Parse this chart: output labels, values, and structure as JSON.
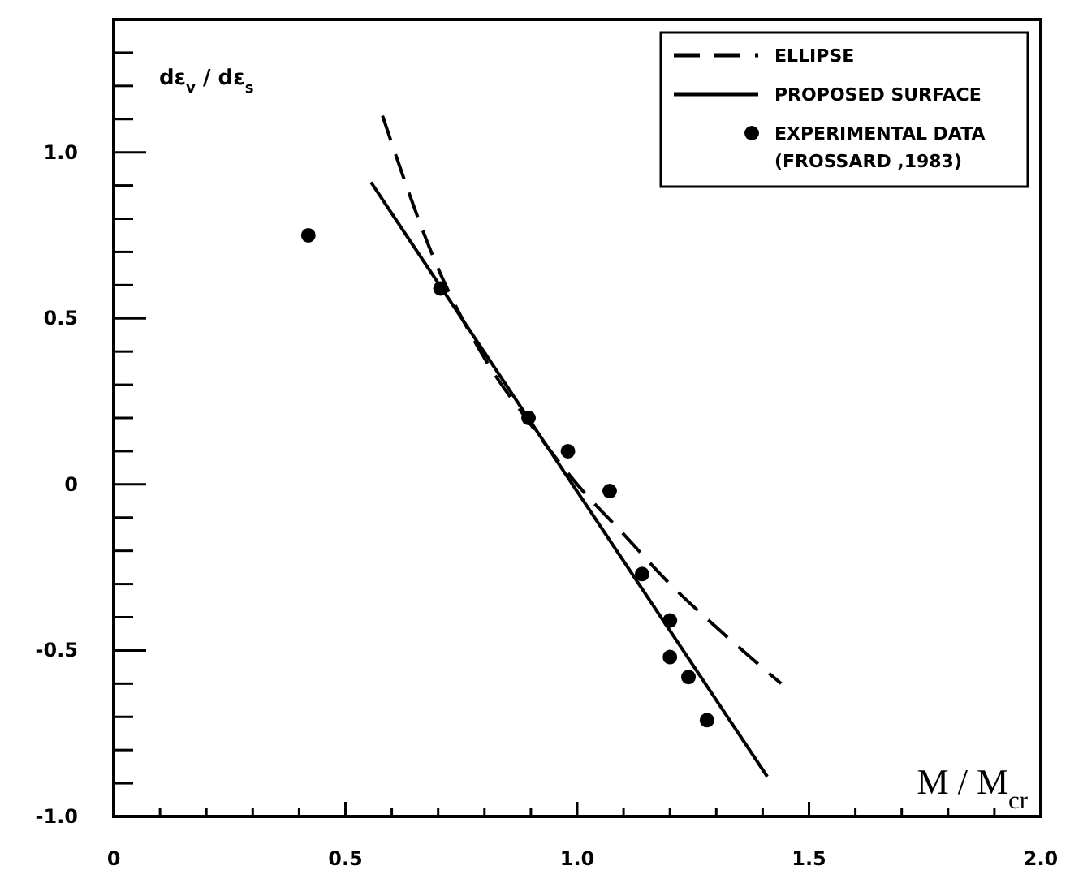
{
  "chart_data": {
    "type": "scatter",
    "xlabel": "M / M$_{cr}$",
    "ylabel": "dε$_{v}$ / dε$_{s}$",
    "xlim": [
      0,
      2.0
    ],
    "ylim": [
      -1.0,
      1.4
    ],
    "xticks": [
      0,
      {
        "value": 0.1,
        "label": null
      },
      {
        "value": 0.2,
        "label": null
      },
      {
        "value": 0.3,
        "label": null
      },
      {
        "value": 0.4,
        "label": null
      },
      0.5,
      {
        "value": 0.6,
        "label": null
      },
      {
        "value": 0.7,
        "label": null
      },
      {
        "value": 0.8,
        "label": null
      },
      {
        "value": 0.9,
        "label": null
      },
      {
        "value": 1,
        "label": "1.0"
      },
      {
        "value": 1.1,
        "label": null
      },
      {
        "value": 1.2,
        "label": null
      },
      {
        "value": 1.3,
        "label": null
      },
      {
        "value": 1.4,
        "label": null
      },
      1.5,
      {
        "value": 1.6,
        "label": null
      },
      {
        "value": 1.7,
        "label": null
      },
      {
        "value": 1.8,
        "label": null
      },
      {
        "value": 1.9,
        "label": null
      },
      {
        "value": 2,
        "label": "2.0"
      }
    ],
    "yticks": [
      {
        "value": -1,
        "label": "-1.0"
      },
      {
        "value": -0.9,
        "label": null
      },
      {
        "value": -0.8,
        "label": null
      },
      {
        "value": -0.7,
        "label": null
      },
      {
        "value": -0.6,
        "label": null
      },
      -0.5,
      {
        "value": -0.4,
        "label": null
      },
      {
        "value": -0.3,
        "label": null
      },
      {
        "value": -0.2,
        "label": null
      },
      {
        "value": -0.1,
        "label": null
      },
      0,
      {
        "value": 0.1,
        "label": null
      },
      {
        "value": 0.2,
        "label": null
      },
      {
        "value": 0.3,
        "label": null
      },
      {
        "value": 0.4,
        "label": null
      },
      0.5,
      {
        "value": 0.6,
        "label": null
      },
      {
        "value": 0.7,
        "label": null
      },
      {
        "value": 0.8,
        "label": null
      },
      {
        "value": 0.9,
        "label": null
      },
      {
        "value": 1,
        "label": "1.0"
      },
      {
        "value": 1.1,
        "label": null
      },
      {
        "value": 1.2,
        "label": null
      },
      {
        "value": 1.3,
        "label": null
      }
    ],
    "legend": "top right",
    "grid": false,
    "series": [
      {
        "name": "ELLIPSE",
        "type": "line",
        "line_style": "dashed",
        "marker": "none",
        "color": "#000000",
        "x": [
          0.58,
          0.7,
          0.8,
          0.9,
          1.0,
          1.1,
          1.2,
          1.3,
          1.44
        ],
        "values": [
          1.11,
          0.65,
          0.38,
          0.18,
          0.0,
          -0.15,
          -0.3,
          -0.43,
          -0.6
        ]
      },
      {
        "name": "PROPOSED SURFACE",
        "type": "line",
        "line_style": "solid",
        "marker": "none",
        "color": "#000000",
        "x": [
          0.555,
          1.41
        ],
        "values": [
          0.91,
          -0.88
        ]
      },
      {
        "name": "EXPERIMENTAL DATA (FROSSARD ,1983)",
        "marker": "circle",
        "color": "#000000",
        "x": [
          0.42,
          0.705,
          0.895,
          0.98,
          1.07,
          1.14,
          1.2,
          1.2,
          1.24,
          1.28
        ],
        "values": [
          0.75,
          0.59,
          0.2,
          0.1,
          -0.02,
          -0.27,
          -0.41,
          -0.52,
          -0.58,
          -0.71
        ]
      }
    ]
  }
}
